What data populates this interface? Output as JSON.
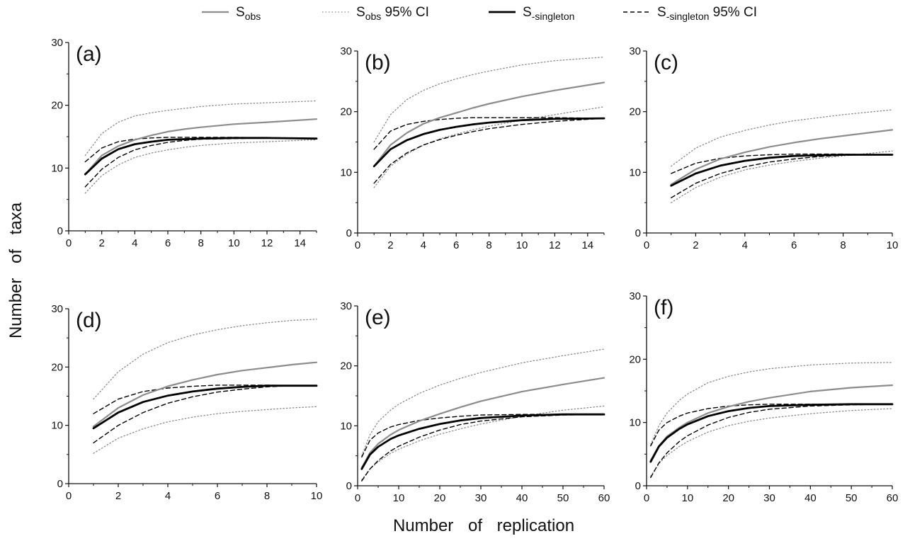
{
  "legend": {
    "entries": [
      {
        "key": "sobs",
        "main": "S",
        "sub": "obs",
        "suffix": "",
        "color": "#8c8c8c",
        "style": "solid"
      },
      {
        "key": "sobs_ci",
        "main": "S",
        "sub": "obs",
        "suffix": " 95% CI",
        "color": "#8c8c8c",
        "style": "dotted"
      },
      {
        "key": "ssing",
        "main": "S",
        "sub": "-singleton",
        "suffix": "",
        "color": "#000000",
        "style": "solid-bold"
      },
      {
        "key": "ssing_ci",
        "main": "S",
        "sub": "-singleton",
        "suffix": " 95% CI",
        "color": "#000000",
        "style": "dashed"
      }
    ]
  },
  "axes": {
    "ylabel": "Number of taxa",
    "xlabel": "Number of replication"
  },
  "chart_data": [
    {
      "type": "line",
      "label": "(a)",
      "xlim": [
        0,
        15
      ],
      "ylim": [
        0,
        30
      ],
      "xticks": [
        0,
        2,
        4,
        6,
        8,
        10,
        12,
        14
      ],
      "yticks": [
        0,
        10,
        20,
        30
      ],
      "x": [
        1,
        2,
        3,
        4,
        5,
        6,
        7,
        8,
        10,
        12,
        15
      ],
      "series": [
        {
          "key": "sobs",
          "values": [
            9,
            12,
            13.5,
            14.5,
            15.2,
            15.8,
            16.2,
            16.5,
            17,
            17.3,
            17.8
          ]
        },
        {
          "key": "sobs_ci_upper",
          "values": [
            12,
            15.5,
            17.3,
            18.3,
            18.8,
            19.2,
            19.5,
            19.8,
            20.2,
            20.4,
            20.7
          ]
        },
        {
          "key": "sobs_ci_lower",
          "values": [
            6,
            8.8,
            10.5,
            11.7,
            12.4,
            12.9,
            13.3,
            13.6,
            14,
            14.2,
            14.5
          ]
        },
        {
          "key": "ssing",
          "values": [
            9,
            11.5,
            13,
            13.8,
            14.2,
            14.5,
            14.6,
            14.7,
            14.8,
            14.8,
            14.7
          ]
        },
        {
          "key": "ssing_ci_upper",
          "values": [
            11,
            13.2,
            14.2,
            14.6,
            14.8,
            14.9,
            14.9,
            14.9,
            14.9,
            14.8,
            14.7
          ]
        },
        {
          "key": "ssing_ci_lower",
          "values": [
            7,
            9.8,
            11.7,
            12.9,
            13.6,
            14.1,
            14.4,
            14.6,
            14.7,
            14.8,
            14.7
          ]
        }
      ]
    },
    {
      "type": "line",
      "label": "(b)",
      "xlim": [
        0,
        15
      ],
      "ylim": [
        0,
        30
      ],
      "xticks": [
        0,
        2,
        4,
        6,
        8,
        10,
        12,
        14
      ],
      "yticks": [
        0,
        10,
        20,
        30
      ],
      "x": [
        1,
        2,
        3,
        4,
        5,
        6,
        7,
        8,
        10,
        12,
        15
      ],
      "series": [
        {
          "key": "sobs",
          "values": [
            11,
            14.5,
            16.5,
            18,
            19,
            19.8,
            20.6,
            21.3,
            22.5,
            23.5,
            24.8
          ]
        },
        {
          "key": "sobs_ci_upper",
          "values": [
            15,
            19.5,
            22,
            23.5,
            24.6,
            25.4,
            26.1,
            26.7,
            27.7,
            28.4,
            29
          ]
        },
        {
          "key": "sobs_ci_lower",
          "values": [
            7.5,
            11,
            13,
            14.5,
            15.5,
            16.3,
            17,
            17.6,
            18.6,
            19.5,
            20.8
          ]
        },
        {
          "key": "ssing",
          "values": [
            11,
            13.8,
            15.3,
            16.3,
            17,
            17.5,
            17.9,
            18.2,
            18.6,
            18.8,
            18.9
          ]
        },
        {
          "key": "ssing_ci_upper",
          "values": [
            13.8,
            16.8,
            17.9,
            18.4,
            18.7,
            18.9,
            19,
            19,
            19,
            19,
            18.9
          ]
        },
        {
          "key": "ssing_ci_lower",
          "values": [
            8.2,
            11.3,
            13.2,
            14.5,
            15.4,
            16.1,
            16.7,
            17.2,
            17.9,
            18.4,
            18.9
          ]
        }
      ]
    },
    {
      "type": "line",
      "label": "(c)",
      "xlim": [
        0,
        10
      ],
      "ylim": [
        0,
        30
      ],
      "xticks": [
        0,
        2,
        4,
        6,
        8,
        10
      ],
      "yticks": [
        0,
        10,
        20,
        30
      ],
      "x": [
        1,
        2,
        3,
        4,
        5,
        6,
        7,
        8,
        9,
        10
      ],
      "series": [
        {
          "key": "sobs",
          "values": [
            8,
            10.5,
            12.2,
            13.3,
            14.2,
            14.9,
            15.5,
            16,
            16.5,
            17
          ]
        },
        {
          "key": "sobs_ci_upper",
          "values": [
            11,
            14,
            15.8,
            16.9,
            17.8,
            18.5,
            19,
            19.5,
            19.9,
            20.3
          ]
        },
        {
          "key": "sobs_ci_lower",
          "values": [
            5,
            7.5,
            9.2,
            10.4,
            11.2,
            11.8,
            12.3,
            12.7,
            13.1,
            13.5
          ]
        },
        {
          "key": "ssing",
          "values": [
            7.8,
            9.8,
            11.1,
            11.9,
            12.4,
            12.7,
            12.8,
            12.9,
            12.9,
            12.9
          ]
        },
        {
          "key": "ssing_ci_upper",
          "values": [
            9.8,
            11.5,
            12.3,
            12.7,
            12.9,
            13,
            13,
            13,
            12.9,
            12.9
          ]
        },
        {
          "key": "ssing_ci_lower",
          "values": [
            5.8,
            8.2,
            9.8,
            10.9,
            11.7,
            12.2,
            12.6,
            12.8,
            12.9,
            12.9
          ]
        }
      ]
    },
    {
      "type": "line",
      "label": "(d)",
      "xlim": [
        0,
        10
      ],
      "ylim": [
        0,
        30
      ],
      "xticks": [
        0,
        2,
        4,
        6,
        8,
        10
      ],
      "yticks": [
        0,
        10,
        20,
        30
      ],
      "x": [
        1,
        2,
        3,
        4,
        5,
        6,
        7,
        8,
        9,
        10
      ],
      "series": [
        {
          "key": "sobs",
          "values": [
            9.8,
            13,
            15.2,
            16.7,
            17.8,
            18.7,
            19.4,
            19.9,
            20.4,
            20.8
          ]
        },
        {
          "key": "sobs_ci_upper",
          "values": [
            14.5,
            19.2,
            22.2,
            24.2,
            25.5,
            26.4,
            27.1,
            27.6,
            28,
            28.2
          ]
        },
        {
          "key": "sobs_ci_lower",
          "values": [
            5.2,
            7.8,
            9.4,
            10.6,
            11.4,
            12,
            12.4,
            12.7,
            13,
            13.2
          ]
        },
        {
          "key": "ssing",
          "values": [
            9.5,
            12.2,
            14,
            15.1,
            15.8,
            16.3,
            16.6,
            16.8,
            16.8,
            16.8
          ]
        },
        {
          "key": "ssing_ci_upper",
          "values": [
            12,
            14.5,
            15.8,
            16.4,
            16.7,
            16.9,
            16.9,
            16.9,
            16.8,
            16.8
          ]
        },
        {
          "key": "ssing_ci_lower",
          "values": [
            7,
            10,
            12.2,
            13.8,
            14.9,
            15.7,
            16.2,
            16.6,
            16.8,
            16.8
          ]
        }
      ]
    },
    {
      "type": "line",
      "label": "(e)",
      "xlim": [
        0,
        60
      ],
      "ylim": [
        0,
        30
      ],
      "xticks": [
        0,
        10,
        20,
        30,
        40,
        50,
        60
      ],
      "yticks": [
        0,
        10,
        20,
        30
      ],
      "x": [
        1,
        3,
        5,
        8,
        10,
        15,
        20,
        25,
        30,
        40,
        50,
        60
      ],
      "series": [
        {
          "key": "sobs",
          "values": [
            3,
            5.5,
            7,
            8.5,
            9.3,
            10.8,
            12,
            13.1,
            14.1,
            15.7,
            16.9,
            18
          ]
        },
        {
          "key": "sobs_ci_upper",
          "values": [
            5,
            8.5,
            10.7,
            12.6,
            13.6,
            15.4,
            16.8,
            17.9,
            18.9,
            20.5,
            21.7,
            22.8
          ]
        },
        {
          "key": "sobs_ci_lower",
          "values": [
            1,
            2.8,
            4,
            5.4,
            6.1,
            7.5,
            8.6,
            9.5,
            10.3,
            11.6,
            12.6,
            13.3
          ]
        },
        {
          "key": "ssing",
          "values": [
            2.8,
            5.2,
            6.5,
            7.8,
            8.4,
            9.5,
            10.3,
            10.9,
            11.3,
            11.7,
            11.9,
            11.9
          ]
        },
        {
          "key": "ssing_ci_upper",
          "values": [
            4.8,
            7.6,
            8.8,
            9.8,
            10.2,
            10.9,
            11.3,
            11.6,
            11.8,
            11.9,
            11.9,
            11.9
          ]
        },
        {
          "key": "ssing_ci_lower",
          "values": [
            0.8,
            2.8,
            4.2,
            5.8,
            6.6,
            8.1,
            9.3,
            10.2,
            10.8,
            11.5,
            11.8,
            11.9
          ]
        }
      ]
    },
    {
      "type": "line",
      "label": "(f)",
      "xlim": [
        0,
        60
      ],
      "ylim": [
        0,
        30
      ],
      "xticks": [
        0,
        10,
        20,
        30,
        40,
        50,
        60
      ],
      "yticks": [
        0,
        10,
        20,
        30
      ],
      "x": [
        1,
        3,
        5,
        8,
        10,
        15,
        20,
        25,
        30,
        40,
        50,
        60
      ],
      "series": [
        {
          "key": "sobs",
          "values": [
            4,
            6.3,
            7.8,
            9.2,
            10,
            11.5,
            12.5,
            13.3,
            13.9,
            14.9,
            15.5,
            15.9
          ]
        },
        {
          "key": "sobs_ci_upper",
          "values": [
            6.5,
            9.5,
            11.5,
            13.5,
            14.5,
            16.3,
            17.3,
            18,
            18.5,
            19.1,
            19.4,
            19.5
          ]
        },
        {
          "key": "sobs_ci_lower",
          "values": [
            1.5,
            3.5,
            4.8,
            6.2,
            7,
            8.5,
            9.5,
            10.2,
            10.7,
            11.4,
            11.9,
            12.2
          ]
        },
        {
          "key": "ssing",
          "values": [
            3.8,
            6.2,
            7.6,
            9,
            9.7,
            11,
            11.8,
            12.3,
            12.6,
            12.8,
            12.9,
            12.9
          ]
        },
        {
          "key": "ssing_ci_upper",
          "values": [
            6.3,
            8.8,
            10,
            11,
            11.5,
            12.2,
            12.6,
            12.8,
            12.9,
            12.9,
            12.9,
            12.9
          ]
        },
        {
          "key": "ssing_ci_lower",
          "values": [
            1.3,
            3.6,
            5.2,
            7,
            7.9,
            9.6,
            10.8,
            11.6,
            12.1,
            12.6,
            12.8,
            12.9
          ]
        }
      ]
    }
  ]
}
